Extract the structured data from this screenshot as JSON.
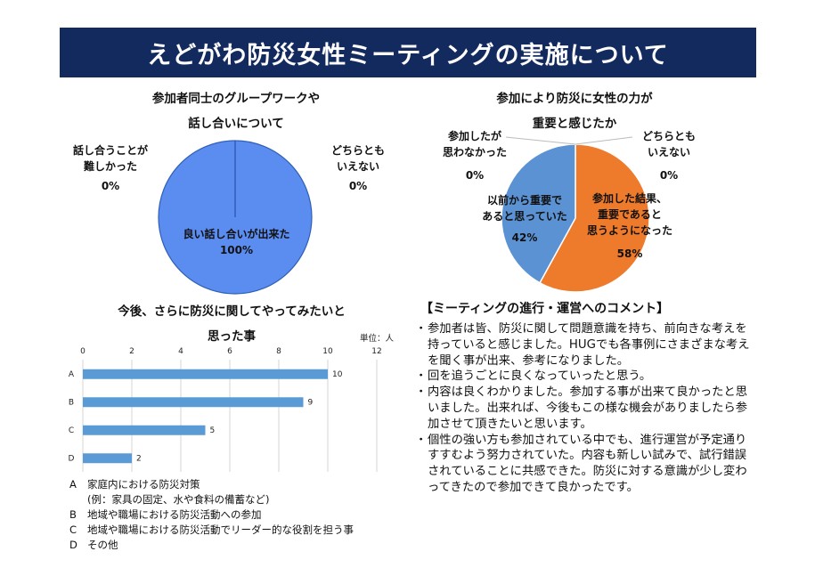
{
  "title": "えどがわ防災女性ミーティングの実施について",
  "chart_data": [
    {
      "type": "pie",
      "title_lines": [
        "参加者同士のグループワークや",
        "話し合いについて"
      ],
      "slices": [
        {
          "label": "良い話し合いが出来た",
          "value": 100,
          "value_label": "100%",
          "color": "#5b8df0"
        },
        {
          "label_lines": [
            "話し合うことが",
            "難しかった"
          ],
          "value": 0,
          "value_label": "0%"
        },
        {
          "label_lines": [
            "どちらとも",
            "いえない"
          ],
          "value": 0,
          "value_label": "0%"
        }
      ]
    },
    {
      "type": "pie",
      "title_lines": [
        "参加により防災に女性の力が",
        "重要と感じたか"
      ],
      "slices": [
        {
          "label_lines": [
            "参加した結果、",
            "重要であると",
            "思うようになった"
          ],
          "value": 58,
          "value_label": "58%",
          "color": "#ee7a2c"
        },
        {
          "label_lines": [
            "以前から重要で",
            "あると思っていた"
          ],
          "value": 42,
          "value_label": "42%",
          "color": "#5b92d3"
        },
        {
          "label_lines": [
            "参加したが",
            "思わなかった"
          ],
          "value": 0,
          "value_label": "0%"
        },
        {
          "label_lines": [
            "どちらとも",
            "いえない"
          ],
          "value": 0,
          "value_label": "0%"
        }
      ]
    },
    {
      "type": "bar",
      "orientation": "horizontal",
      "title_lines": [
        "今後、さらに防災に関してやってみたいと",
        "思った事"
      ],
      "unit": "単位：人",
      "categories": [
        "A",
        "B",
        "C",
        "D"
      ],
      "values": [
        10,
        9,
        5,
        2
      ],
      "xlim": [
        0,
        12
      ],
      "ticks": [
        "0",
        "2",
        "4",
        "6",
        "8",
        "10",
        "12"
      ],
      "grid": true,
      "bar_color": "#5b9bd5",
      "legend": [
        {
          "key": "A",
          "text": "家庭内における防災対策"
        },
        {
          "key": "",
          "text": "(例：家具の固定、水や食料の備蓄など)"
        },
        {
          "key": "B",
          "text": "地域や職場における防災活動への参加"
        },
        {
          "key": "C",
          "text": "地域や職場における防災活動でリーダー的な役割を担う事"
        },
        {
          "key": "D",
          "text": "その他"
        }
      ]
    }
  ],
  "comments": {
    "heading": "【ミーティングの進行・運営へのコメント】",
    "items": [
      "参加者は皆、防災に関して問題意識を持ち、前向きな考えを持っていると感じました。HUGでも各事例にさまざまな考えを聞く事が出来、参考になりました。",
      "回を追うごとに良くなっていったと思う。",
      "内容は良くわかりました。参加する事が出来て良かったと思いました。出来れば、今後もこの様な機会がありましたら参加させて頂きたいと思います。",
      "個性の強い方も参加されている中でも、進行運営が予定通りすすむよう努力されていた。内容も新しい試みで、試行錯誤されていることに共感できた。防災に対する意識が少し変わってきたので参加できて良かったです。"
    ]
  }
}
